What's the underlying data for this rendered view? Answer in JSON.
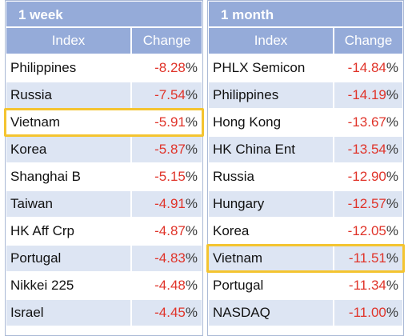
{
  "colors": {
    "header": "#95abd9",
    "alt_row": "#dde5f3",
    "negative": "#e0342a",
    "highlight": "#f4c430"
  },
  "panels": [
    {
      "title": "1 week",
      "col_index": "Index",
      "col_change": "Change",
      "rows": [
        {
          "name": "Philippines",
          "change": "-8.28",
          "unit": "%"
        },
        {
          "name": "Russia",
          "change": "-7.54",
          "unit": "%"
        },
        {
          "name": "Vietnam",
          "change": "-5.91",
          "unit": "%",
          "highlight": true
        },
        {
          "name": "Korea",
          "change": "-5.87",
          "unit": "%"
        },
        {
          "name": "Shanghai B",
          "change": "-5.15",
          "unit": "%"
        },
        {
          "name": "Taiwan",
          "change": "-4.91",
          "unit": "%"
        },
        {
          "name": "HK Aff Crp",
          "change": "-4.87",
          "unit": "%"
        },
        {
          "name": "Portugal",
          "change": "-4.83",
          "unit": "%"
        },
        {
          "name": "Nikkei 225",
          "change": "-4.48",
          "unit": "%"
        },
        {
          "name": "Israel",
          "change": "-4.45",
          "unit": "%"
        }
      ]
    },
    {
      "title": "1 month",
      "col_index": "Index",
      "col_change": "Change",
      "rows": [
        {
          "name": "PHLX Semicon",
          "change": "-14.84",
          "unit": "%"
        },
        {
          "name": "Philippines",
          "change": "-14.19",
          "unit": "%"
        },
        {
          "name": "Hong Kong",
          "change": "-13.67",
          "unit": "%"
        },
        {
          "name": "HK China Ent",
          "change": "-13.54",
          "unit": "%"
        },
        {
          "name": "Russia",
          "change": "-12.90",
          "unit": "%"
        },
        {
          "name": "Hungary",
          "change": "-12.57",
          "unit": "%"
        },
        {
          "name": "Korea",
          "change": "-12.05",
          "unit": "%"
        },
        {
          "name": "Vietnam",
          "change": "-11.51",
          "unit": "%",
          "highlight": true
        },
        {
          "name": "Portugal",
          "change": "-11.34",
          "unit": "%"
        },
        {
          "name": "NASDAQ",
          "change": "-11.00",
          "unit": "%"
        }
      ]
    }
  ]
}
